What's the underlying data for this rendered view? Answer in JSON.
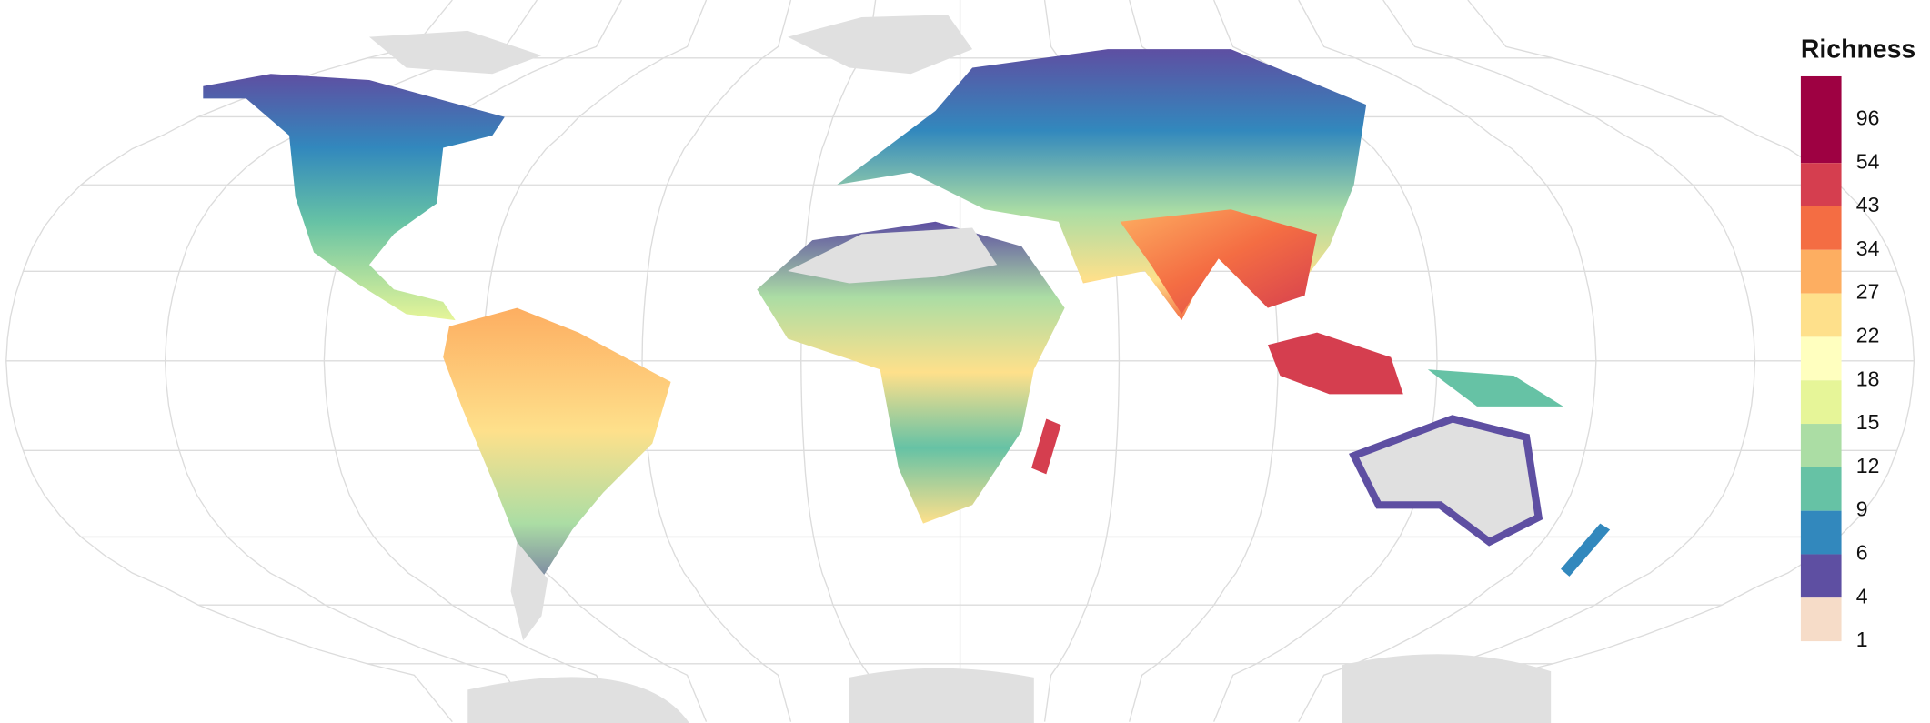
{
  "legend": {
    "title": "Richness",
    "labels": [
      "96",
      "54",
      "43",
      "34",
      "27",
      "22",
      "18",
      "15",
      "12",
      "9",
      "6",
      "4",
      "1"
    ],
    "colors": [
      "#9e0142",
      "#d53e4f",
      "#f46d43",
      "#fdae61",
      "#fee08b",
      "#ffffbf",
      "#e6f598",
      "#abdda4",
      "#66c2a5",
      "#3288bd",
      "#5e4fa2",
      "#f6dcc8"
    ]
  }
}
